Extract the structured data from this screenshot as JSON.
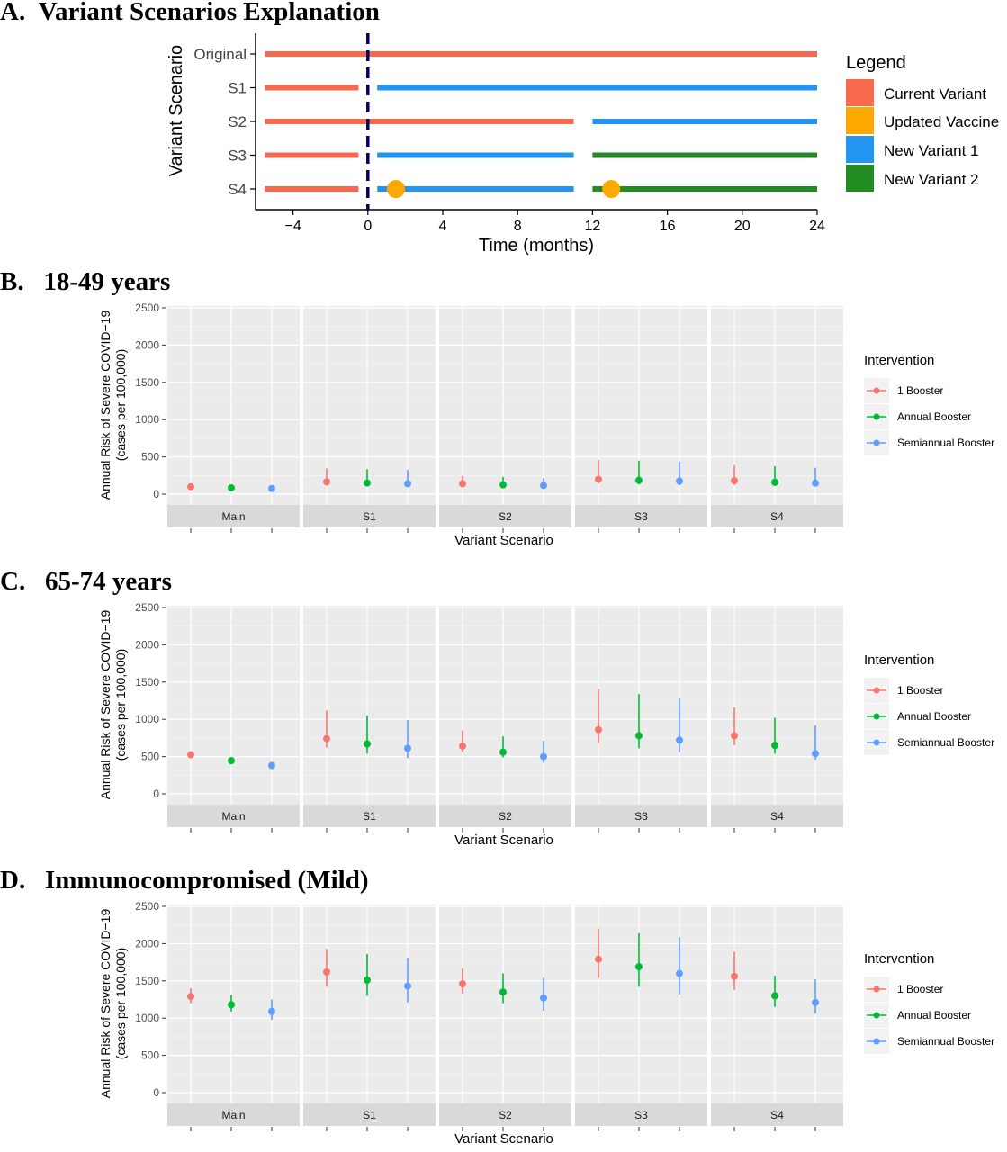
{
  "panel_a": {
    "heading": "A.  Variant Scenarios Explanation",
    "xlabel": "Time (months)",
    "ylabel": "Variant Scenario",
    "legend_title": "Legend",
    "legend_items": [
      {
        "label": "Current Variant",
        "color": "#f8694e"
      },
      {
        "label": "Updated Vaccine",
        "color": "#ffa800"
      },
      {
        "label": "New Variant 1",
        "color": "#2195f1"
      },
      {
        "label": "New Variant 2",
        "color": "#228b22"
      }
    ]
  },
  "panel_headings": [
    "B.   18-49 years",
    "C.   65-74 years",
    "D.   Immunocompromised (Mild)"
  ],
  "facet_axis": {
    "ylabel_line1": "Annual Risk of Severe COVID−19",
    "ylabel_line2": "(cases per 100,000)",
    "xlabel": "Variant Scenario",
    "legend_title": "Intervention"
  },
  "chart_data": [
    {
      "type": "timeline",
      "title": "Variant Scenarios Explanation",
      "xlabel": "Time (months)",
      "ylabel": "Variant Scenario",
      "xlim": [
        -6,
        24
      ],
      "xticks": [
        -4,
        0,
        4,
        8,
        12,
        16,
        20,
        24
      ],
      "vline_x": 0,
      "rows": [
        {
          "label": "Original",
          "segments": [
            {
              "start": -5.5,
              "end": 24,
              "kind": "Current Variant"
            }
          ],
          "markers": []
        },
        {
          "label": "S1",
          "segments": [
            {
              "start": -5.5,
              "end": -0.5,
              "kind": "Current Variant"
            },
            {
              "start": 0.5,
              "end": 24,
              "kind": "New Variant 1"
            }
          ],
          "markers": []
        },
        {
          "label": "S2",
          "segments": [
            {
              "start": -5.5,
              "end": 11,
              "kind": "Current Variant"
            },
            {
              "start": 12,
              "end": 24,
              "kind": "New Variant 1"
            }
          ],
          "markers": []
        },
        {
          "label": "S3",
          "segments": [
            {
              "start": -5.5,
              "end": -0.5,
              "kind": "Current Variant"
            },
            {
              "start": 0.5,
              "end": 11,
              "kind": "New Variant 1"
            },
            {
              "start": 12,
              "end": 24,
              "kind": "New Variant 2"
            }
          ],
          "markers": []
        },
        {
          "label": "S4",
          "segments": [
            {
              "start": -5.5,
              "end": -0.5,
              "kind": "Current Variant"
            },
            {
              "start": 0.5,
              "end": 11,
              "kind": "New Variant 1"
            },
            {
              "start": 12,
              "end": 24,
              "kind": "New Variant 2"
            }
          ],
          "markers": [
            {
              "x": 1.5,
              "kind": "Updated Vaccine"
            },
            {
              "x": 13,
              "kind": "Updated Vaccine"
            }
          ]
        }
      ],
      "legend": [
        "Current Variant",
        "Updated Vaccine",
        "New Variant 1",
        "New Variant 2"
      ]
    },
    {
      "type": "scatter",
      "title": "18-49 years",
      "xlabel": "Variant Scenario",
      "ylabel": "Annual Risk of Severe COVID−19 (cases per 100,000)",
      "ylim": [
        -100,
        2600
      ],
      "yticks": [
        0,
        500,
        1000,
        1500,
        2000,
        2500
      ],
      "facets": [
        "Main",
        "S1",
        "S2",
        "S3",
        "S4"
      ],
      "series": [
        {
          "name": "1 Booster",
          "color": "#f8766d",
          "values": [
            100,
            165,
            140,
            200,
            180
          ],
          "lower": [
            null,
            115,
            95,
            140,
            125
          ],
          "upper": [
            null,
            345,
            245,
            460,
            390
          ]
        },
        {
          "name": "Annual Booster",
          "color": "#00ba38",
          "values": [
            85,
            150,
            125,
            185,
            160
          ],
          "lower": [
            null,
            105,
            90,
            130,
            110
          ],
          "upper": [
            null,
            335,
            230,
            450,
            375
          ]
        },
        {
          "name": "Semiannual Booster",
          "color": "#619cff",
          "values": [
            75,
            140,
            115,
            175,
            148
          ],
          "lower": [
            null,
            95,
            80,
            120,
            100
          ],
          "upper": [
            null,
            325,
            215,
            440,
            355
          ]
        }
      ],
      "legend_title": "Intervention"
    },
    {
      "type": "scatter",
      "title": "65-74 years",
      "xlabel": "Variant Scenario",
      "ylabel": "Annual Risk of Severe COVID−19 (cases per 100,000)",
      "ylim": [
        -100,
        2600
      ],
      "yticks": [
        0,
        500,
        1000,
        1500,
        2000,
        2500
      ],
      "facets": [
        "Main",
        "S1",
        "S2",
        "S3",
        "S4"
      ],
      "series": [
        {
          "name": "1 Booster",
          "color": "#f8766d",
          "values": [
            525,
            740,
            640,
            860,
            780
          ],
          "lower": [
            null,
            620,
            560,
            680,
            650
          ],
          "upper": [
            null,
            1120,
            850,
            1410,
            1160
          ]
        },
        {
          "name": "Annual Booster",
          "color": "#00ba38",
          "values": [
            445,
            670,
            560,
            780,
            650
          ],
          "lower": [
            null,
            540,
            490,
            610,
            540
          ],
          "upper": [
            null,
            1050,
            770,
            1340,
            1020
          ]
        },
        {
          "name": "Semiannual Booster",
          "color": "#619cff",
          "values": [
            380,
            610,
            500,
            720,
            540
          ],
          "lower": [
            null,
            480,
            420,
            560,
            460
          ],
          "upper": [
            null,
            990,
            710,
            1280,
            920
          ]
        }
      ],
      "legend_title": "Intervention"
    },
    {
      "type": "scatter",
      "title": "Immunocompromised (Mild)",
      "xlabel": "Variant Scenario",
      "ylabel": "Annual Risk of Severe COVID−19 (cases per 100,000)",
      "ylim": [
        -100,
        2600
      ],
      "yticks": [
        0,
        500,
        1000,
        1500,
        2000,
        2500
      ],
      "facets": [
        "Main",
        "S1",
        "S2",
        "S3",
        "S4"
      ],
      "series": [
        {
          "name": "1 Booster",
          "color": "#f8766d",
          "values": [
            1290,
            1620,
            1460,
            1790,
            1560
          ],
          "lower": [
            1200,
            1420,
            1330,
            1540,
            1380
          ],
          "upper": [
            1400,
            1930,
            1670,
            2200,
            1890
          ]
        },
        {
          "name": "Annual Booster",
          "color": "#00ba38",
          "values": [
            1180,
            1510,
            1350,
            1690,
            1300
          ],
          "lower": [
            1090,
            1300,
            1200,
            1420,
            1150
          ],
          "upper": [
            1310,
            1860,
            1600,
            2140,
            1570
          ]
        },
        {
          "name": "Semiannual Booster",
          "color": "#619cff",
          "values": [
            1090,
            1430,
            1270,
            1600,
            1210
          ],
          "lower": [
            980,
            1210,
            1100,
            1320,
            1060
          ],
          "upper": [
            1250,
            1810,
            1540,
            2090,
            1520
          ]
        }
      ],
      "legend_title": "Intervention"
    }
  ]
}
